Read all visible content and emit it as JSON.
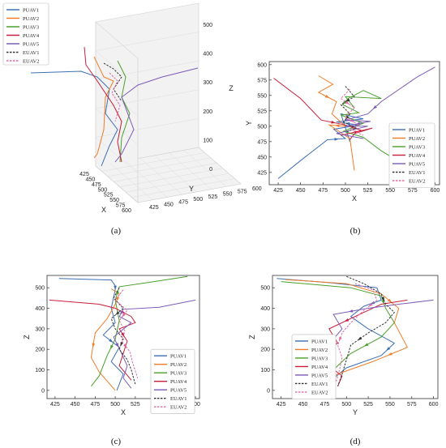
{
  "legend": [
    "PUAV1",
    "PUAV2",
    "PUAV3",
    "PUAV4",
    "PUAV5",
    "EUAV1",
    "EUAV2"
  ],
  "colors": [
    "#3c6fb4",
    "#f07c2a",
    "#4aa02c",
    "#c81e3a",
    "#7d5bb6",
    "#333333",
    "#e06aa8"
  ],
  "dashed": [
    false,
    false,
    false,
    false,
    false,
    true,
    true
  ],
  "captions": {
    "a": "(a)",
    "b": "(b)",
    "c": "(c)",
    "d": "(d)"
  },
  "chart_data": [
    {
      "type": "line",
      "panel": "a",
      "view": "3d",
      "xlabel": "X",
      "ylabel": "Y",
      "zlabel": "Z",
      "xlim": [
        425,
        600
      ],
      "ylim": [
        425,
        600
      ],
      "zlim": [
        0,
        500
      ],
      "x_ticks": [
        425,
        450,
        475,
        500,
        525,
        550,
        575,
        600
      ],
      "y_ticks": [
        425,
        450,
        475,
        500,
        525,
        550,
        575,
        600
      ],
      "z_ticks": [
        0,
        100,
        200,
        300,
        400,
        500
      ],
      "legend_position": "top-left"
    },
    {
      "type": "line",
      "panel": "b",
      "xlabel": "X",
      "ylabel": "Y",
      "xlim": [
        415,
        605
      ],
      "ylim": [
        405,
        605
      ],
      "x_ticks": [
        425,
        450,
        475,
        500,
        525,
        550,
        575,
        600
      ],
      "y_ticks": [
        425,
        450,
        475,
        500,
        525,
        550,
        575,
        600
      ],
      "legend_position": "right",
      "series": [
        {
          "name": "PUAV1",
          "points": [
            [
              425,
              415
            ],
            [
              455,
              450
            ],
            [
              480,
              478
            ],
            [
              500,
              480
            ],
            [
              487,
              495
            ],
            [
              515,
              502
            ],
            [
              490,
              507
            ],
            [
              520,
              512
            ],
            [
              495,
              520
            ],
            [
              505,
              475
            ]
          ]
        },
        {
          "name": "PUAV2",
          "points": [
            [
              470,
              582
            ],
            [
              486,
              568
            ],
            [
              470,
              555
            ],
            [
              490,
              540
            ],
            [
              485,
              520
            ],
            [
              500,
              500
            ],
            [
              482,
              502
            ],
            [
              505,
              480
            ],
            [
              510,
              428
            ]
          ]
        },
        {
          "name": "PUAV3",
          "points": [
            [
              580,
              425
            ],
            [
              540,
              460
            ],
            [
              520,
              482
            ],
            [
              498,
              492
            ],
            [
              520,
              505
            ],
            [
              495,
              518
            ],
            [
              515,
              522
            ],
            [
              497,
              535
            ],
            [
              503,
              545
            ],
            [
              520,
              558
            ],
            [
              540,
              545
            ],
            [
              500,
              548
            ],
            [
              510,
              530
            ]
          ]
        },
        {
          "name": "PUAV4",
          "points": [
            [
              420,
              578
            ],
            [
              450,
              545
            ],
            [
              473,
              510
            ],
            [
              500,
              502
            ],
            [
              518,
              493
            ],
            [
              495,
              485
            ],
            [
              530,
              497
            ],
            [
              510,
              488
            ],
            [
              505,
              478
            ]
          ]
        },
        {
          "name": "PUAV5",
          "points": [
            [
              600,
              596
            ],
            [
              580,
              580
            ],
            [
              540,
              540
            ],
            [
              525,
              520
            ],
            [
              500,
              510
            ],
            [
              528,
              508
            ],
            [
              500,
              500
            ],
            [
              525,
              500
            ],
            [
              490,
              488
            ],
            [
              520,
              480
            ]
          ]
        },
        {
          "name": "EUAV1",
          "points": [
            [
              500,
              565
            ],
            [
              510,
              548
            ],
            [
              495,
              535
            ],
            [
              505,
              520
            ],
            [
              498,
              507
            ],
            [
              512,
              497
            ],
            [
              500,
              490
            ]
          ]
        },
        {
          "name": "EUAV2",
          "points": [
            [
              505,
              560
            ],
            [
              495,
              545
            ],
            [
              510,
              530
            ],
            [
              500,
              515
            ],
            [
              515,
              502
            ],
            [
              505,
              495
            ],
            [
              520,
              485
            ]
          ]
        }
      ]
    },
    {
      "type": "line",
      "panel": "c",
      "xlabel": "X",
      "ylabel": "Z",
      "xlim": [
        415,
        605
      ],
      "ylim": [
        -40,
        560
      ],
      "x_ticks": [
        425,
        450,
        475,
        500,
        525,
        550,
        575,
        600
      ],
      "y_ticks": [
        0,
        100,
        200,
        300,
        400,
        500
      ],
      "legend_position": "bottom-right",
      "series": [
        {
          "name": "PUAV1",
          "points": [
            [
              430,
              545
            ],
            [
              495,
              538
            ],
            [
              500,
              510
            ],
            [
              500,
              490
            ],
            [
              495,
              400
            ],
            [
              500,
              330
            ],
            [
              485,
              270
            ],
            [
              505,
              210
            ],
            [
              495,
              140
            ],
            [
              510,
              80
            ],
            [
              502,
              0
            ]
          ]
        },
        {
          "name": "PUAV2",
          "points": [
            [
              495,
              495
            ],
            [
              505,
              470
            ],
            [
              500,
              420
            ],
            [
              490,
              350
            ],
            [
              475,
              280
            ],
            [
              470,
              160
            ],
            [
              480,
              90
            ],
            [
              500,
              0
            ]
          ]
        },
        {
          "name": "PUAV3",
          "points": [
            [
              590,
              555
            ],
            [
              540,
              525
            ],
            [
              505,
              505
            ],
            [
              500,
              440
            ],
            [
              505,
              340
            ],
            [
              500,
              250
            ],
            [
              490,
              170
            ],
            [
              480,
              70
            ],
            [
              470,
              20
            ]
          ]
        },
        {
          "name": "PUAV4",
          "points": [
            [
              418,
              440
            ],
            [
              480,
              420
            ],
            [
              500,
              400
            ],
            [
              520,
              360
            ],
            [
              525,
              330
            ],
            [
              505,
              300
            ],
            [
              515,
              240
            ],
            [
              510,
              180
            ],
            [
              505,
              120
            ],
            [
              520,
              50
            ]
          ]
        },
        {
          "name": "PUAV5",
          "points": [
            [
              600,
              440
            ],
            [
              555,
              405
            ],
            [
              510,
              395
            ],
            [
              505,
              360
            ],
            [
              520,
              330
            ],
            [
              498,
              260
            ],
            [
              508,
              180
            ],
            [
              515,
              120
            ],
            [
              510,
              60
            ],
            [
              520,
              10
            ]
          ]
        },
        {
          "name": "EUAV1",
          "points": [
            [
              505,
              500
            ],
            [
              498,
              450
            ],
            [
              510,
              400
            ],
            [
              495,
              350
            ],
            [
              500,
              300
            ],
            [
              510,
              250
            ],
            [
              505,
              200
            ],
            [
              515,
              150
            ],
            [
              520,
              100
            ],
            [
              525,
              30
            ]
          ]
        },
        {
          "name": "EUAV2",
          "points": [
            [
              510,
              490
            ],
            [
              500,
              440
            ],
            [
              515,
              390
            ],
            [
              505,
              340
            ],
            [
              512,
              290
            ],
            [
              508,
              240
            ],
            [
              518,
              190
            ],
            [
              522,
              130
            ],
            [
              528,
              60
            ]
          ]
        }
      ]
    },
    {
      "type": "line",
      "panel": "d",
      "xlabel": "Y",
      "ylabel": "Z",
      "xlim": [
        415,
        605
      ],
      "ylim": [
        -40,
        560
      ],
      "x_ticks": [
        425,
        450,
        475,
        500,
        525,
        550,
        575,
        600
      ],
      "y_ticks": [
        0,
        100,
        200,
        300,
        400,
        500
      ],
      "legend_position": "left",
      "series": [
        {
          "name": "PUAV1",
          "points": [
            [
              420,
              545
            ],
            [
              480,
              525
            ],
            [
              535,
              500
            ],
            [
              540,
              440
            ],
            [
              520,
              410
            ],
            [
              505,
              360
            ],
            [
              525,
              300
            ],
            [
              555,
              230
            ],
            [
              540,
              170
            ],
            [
              500,
              110
            ],
            [
              480,
              40
            ],
            [
              450,
              0
            ]
          ]
        },
        {
          "name": "PUAV2",
          "points": [
            [
              430,
              540
            ],
            [
              500,
              520
            ],
            [
              540,
              470
            ],
            [
              560,
              400
            ],
            [
              555,
              330
            ],
            [
              570,
              210
            ],
            [
              530,
              140
            ],
            [
              490,
              80
            ],
            [
              460,
              0
            ]
          ]
        },
        {
          "name": "PUAV3",
          "points": [
            [
              425,
              530
            ],
            [
              505,
              500
            ],
            [
              540,
              460
            ],
            [
              545,
              400
            ],
            [
              555,
              330
            ],
            [
              540,
              260
            ],
            [
              505,
              180
            ],
            [
              480,
              80
            ],
            [
              470,
              -20
            ]
          ]
        },
        {
          "name": "PUAV4",
          "points": [
            [
              570,
              440
            ],
            [
              540,
              420
            ],
            [
              520,
              380
            ],
            [
              480,
              300
            ],
            [
              490,
              230
            ],
            [
              460,
              170
            ],
            [
              480,
              120
            ],
            [
              495,
              70
            ],
            [
              490,
              20
            ]
          ]
        },
        {
          "name": "PUAV5",
          "points": [
            [
              600,
              440
            ],
            [
              560,
              420
            ],
            [
              525,
              400
            ],
            [
              485,
              370
            ],
            [
              495,
              300
            ],
            [
              485,
              250
            ],
            [
              470,
              180
            ],
            [
              475,
              100
            ],
            [
              480,
              -10
            ]
          ]
        },
        {
          "name": "EUAV1",
          "points": [
            [
              500,
              555
            ],
            [
              520,
              520
            ],
            [
              540,
              470
            ],
            [
              545,
              420
            ],
            [
              555,
              380
            ],
            [
              545,
              330
            ],
            [
              525,
              280
            ],
            [
              505,
              220
            ],
            [
              500,
              150
            ],
            [
              495,
              80
            ],
            [
              490,
              20
            ]
          ]
        },
        {
          "name": "EUAV2",
          "points": [
            [
              510,
              520
            ],
            [
              530,
              490
            ],
            [
              535,
              440
            ],
            [
              520,
              390
            ],
            [
              505,
              330
            ],
            [
              495,
              280
            ],
            [
              490,
              220
            ],
            [
              495,
              160
            ],
            [
              492,
              100
            ],
            [
              488,
              40
            ]
          ]
        }
      ]
    }
  ]
}
